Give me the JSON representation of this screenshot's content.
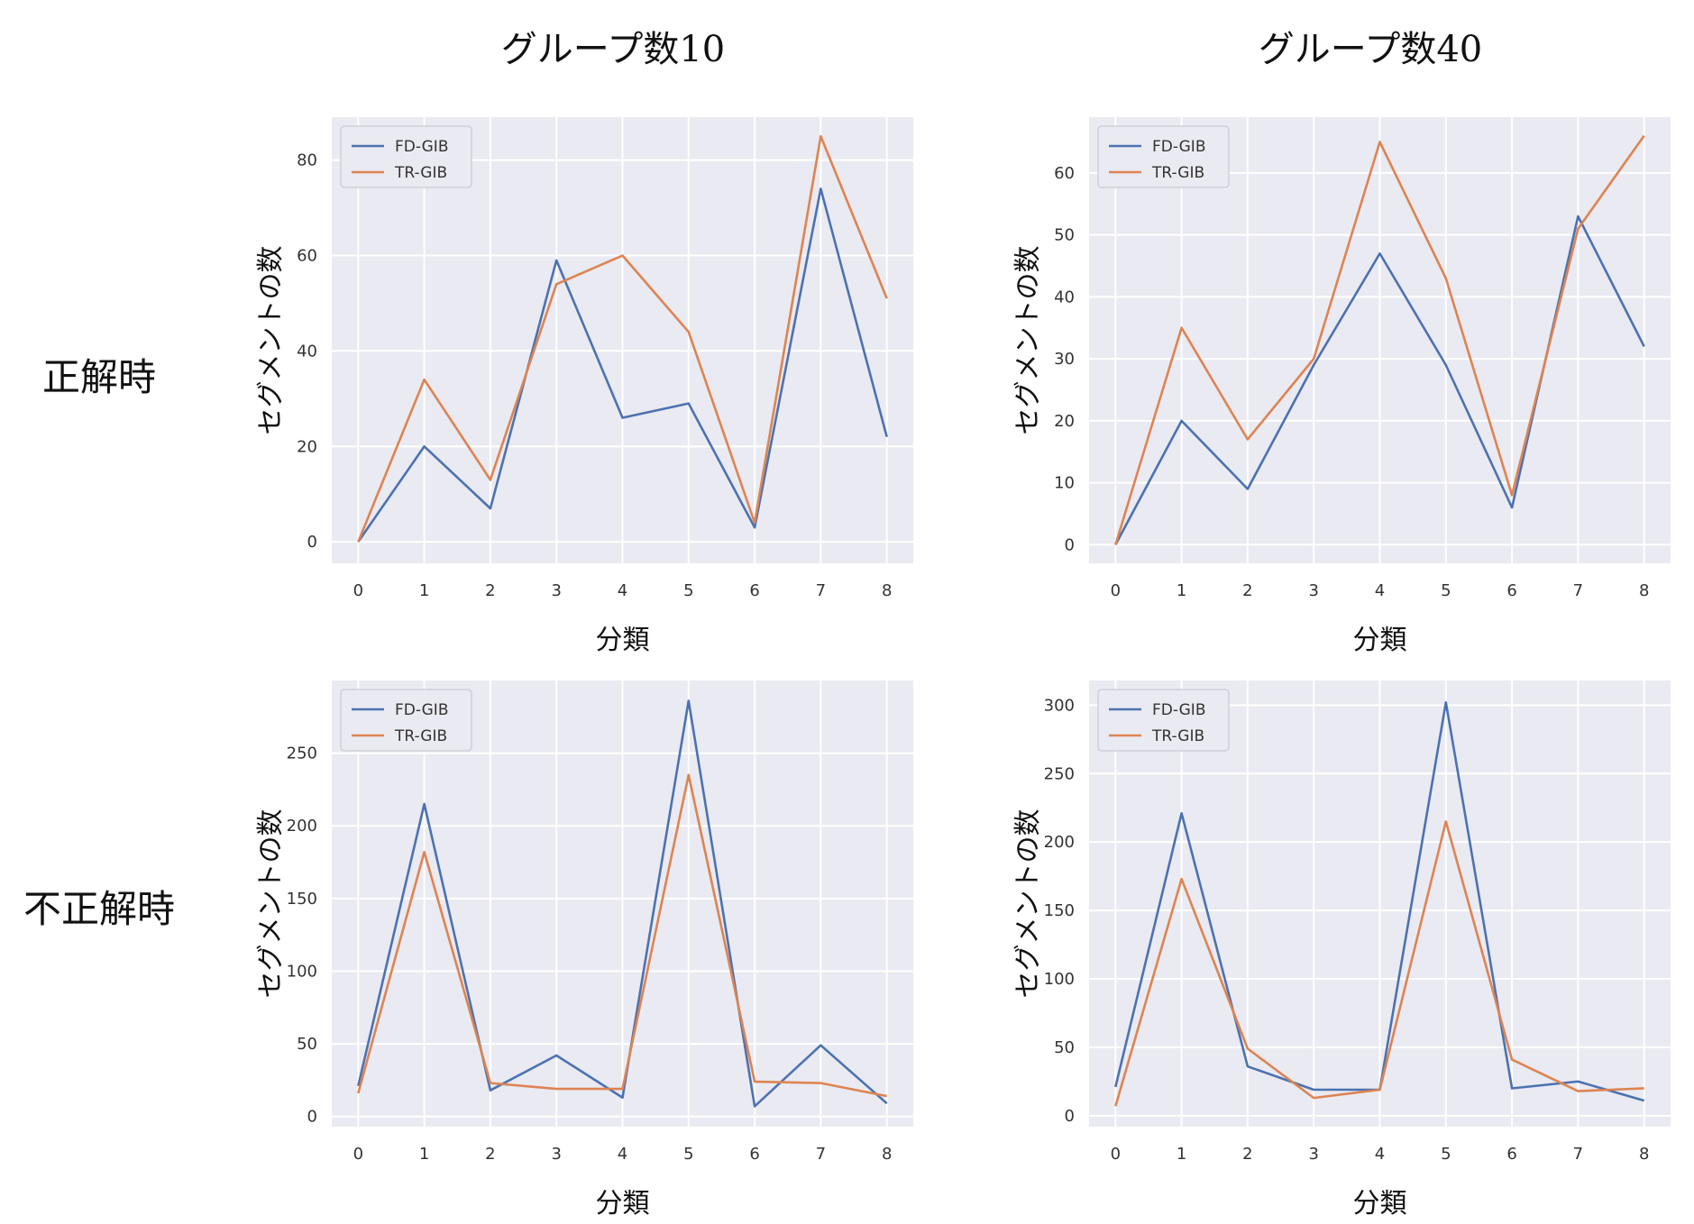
{
  "column_titles": [
    "グループ数10",
    "グループ数40"
  ],
  "row_titles": [
    "正解時",
    "不正解時"
  ],
  "colors": {
    "FD-GIB": "#4c72b0",
    "TR-GIB": "#dd8452",
    "plot_bg": "#eaeaf2",
    "grid": "#ffffff"
  },
  "chart_data": [
    {
      "type": "line",
      "xlabel": "分類",
      "ylabel": "セグメントの数",
      "x": [
        0,
        1,
        2,
        3,
        4,
        5,
        6,
        7,
        8
      ],
      "xlim": [
        -0.4,
        8.4
      ],
      "ylim": [
        -4.5,
        89
      ],
      "yticks": [
        0,
        20,
        40,
        60,
        80
      ],
      "legend": "top-left",
      "series": [
        {
          "name": "FD-GIB",
          "values": [
            0,
            20,
            7,
            59,
            26,
            29,
            3,
            74,
            22
          ]
        },
        {
          "name": "TR-GIB",
          "values": [
            0,
            34,
            13,
            54,
            60,
            44,
            4,
            85,
            51
          ]
        }
      ]
    },
    {
      "type": "line",
      "xlabel": "分類",
      "ylabel": "セグメントの数",
      "x": [
        0,
        1,
        2,
        3,
        4,
        5,
        6,
        7,
        8
      ],
      "xlim": [
        -0.4,
        8.4
      ],
      "ylim": [
        -3,
        69
      ],
      "yticks": [
        0,
        10,
        20,
        30,
        40,
        50,
        60
      ],
      "legend": "top-left",
      "series": [
        {
          "name": "FD-GIB",
          "values": [
            0,
            20,
            9,
            29,
            47,
            29,
            6,
            53,
            32
          ]
        },
        {
          "name": "TR-GIB",
          "values": [
            0,
            35,
            17,
            30,
            65,
            43,
            8,
            51,
            66
          ]
        }
      ]
    },
    {
      "type": "line",
      "xlabel": "分類",
      "ylabel": "セグメントの数",
      "x": [
        0,
        1,
        2,
        3,
        4,
        5,
        6,
        7,
        8
      ],
      "xlim": [
        -0.4,
        8.4
      ],
      "ylim": [
        -7,
        300
      ],
      "yticks": [
        0,
        50,
        100,
        150,
        200,
        250
      ],
      "legend": "top-left",
      "series": [
        {
          "name": "FD-GIB",
          "values": [
            21,
            215,
            18,
            42,
            13,
            286,
            7,
            49,
            9
          ]
        },
        {
          "name": "TR-GIB",
          "values": [
            16,
            182,
            23,
            19,
            19,
            235,
            24,
            23,
            14
          ]
        }
      ]
    },
    {
      "type": "line",
      "xlabel": "分類",
      "ylabel": "セグメントの数",
      "x": [
        0,
        1,
        2,
        3,
        4,
        5,
        6,
        7,
        8
      ],
      "xlim": [
        -0.4,
        8.4
      ],
      "ylim": [
        -8,
        318
      ],
      "yticks": [
        0,
        50,
        100,
        150,
        200,
        250,
        300
      ],
      "legend": "top-left",
      "series": [
        {
          "name": "FD-GIB",
          "values": [
            21,
            221,
            36,
            19,
            19,
            302,
            20,
            25,
            11
          ]
        },
        {
          "name": "TR-GIB",
          "values": [
            7,
            173,
            49,
            13,
            19,
            215,
            41,
            18,
            20
          ]
        }
      ]
    }
  ]
}
